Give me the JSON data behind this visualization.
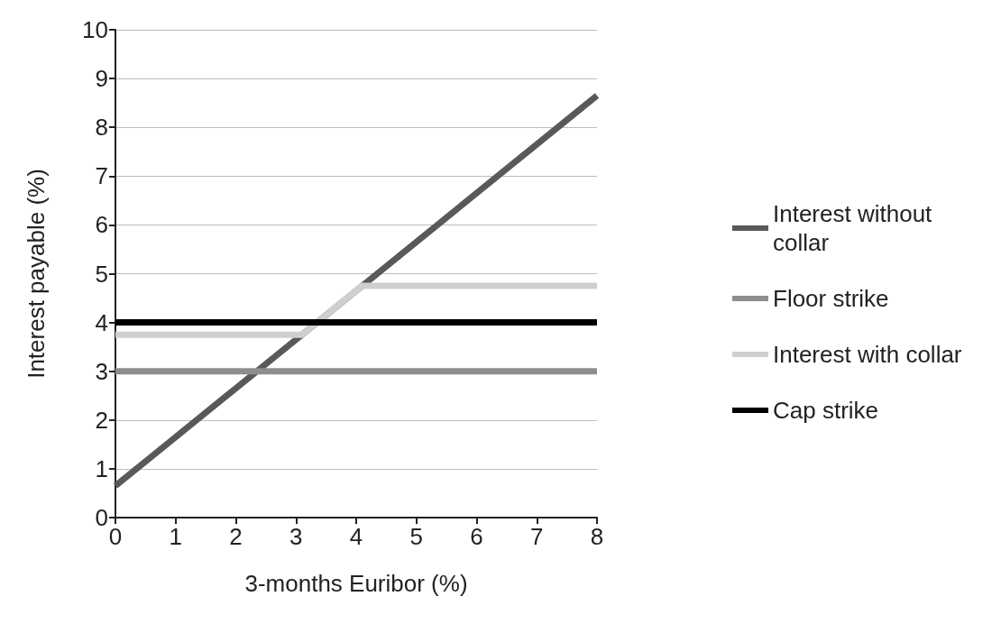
{
  "chart_data": {
    "type": "line",
    "xlabel": "3-months Euribor (%)",
    "ylabel": "Interest payable (%)",
    "xlim": [
      0,
      8
    ],
    "xticks": [
      0,
      1,
      2,
      3,
      4,
      5,
      6,
      7,
      8
    ],
    "ylim": [
      0,
      10
    ],
    "yticks": [
      0,
      1,
      2,
      3,
      4,
      5,
      6,
      7,
      8,
      9,
      10
    ],
    "grid": "y",
    "legend": "right",
    "marker": "none",
    "line_style": "solid",
    "series": [
      {
        "name": "Interest without collar",
        "color": "#595959",
        "x": [
          0,
          8
        ],
        "values": [
          0.65,
          8.65
        ]
      },
      {
        "name": "Floor strike",
        "color": "#8e8e8e",
        "x": [
          0,
          8
        ],
        "values": [
          3,
          3
        ]
      },
      {
        "name": "Interest with collar",
        "color": "#cfcfcf",
        "x": [
          0,
          3.1,
          4.1,
          8
        ],
        "values": [
          3.75,
          3.75,
          4.75,
          4.75
        ]
      },
      {
        "name": "Cap strike",
        "color": "#000000",
        "x": [
          0,
          8
        ],
        "values": [
          4,
          4
        ]
      }
    ]
  }
}
